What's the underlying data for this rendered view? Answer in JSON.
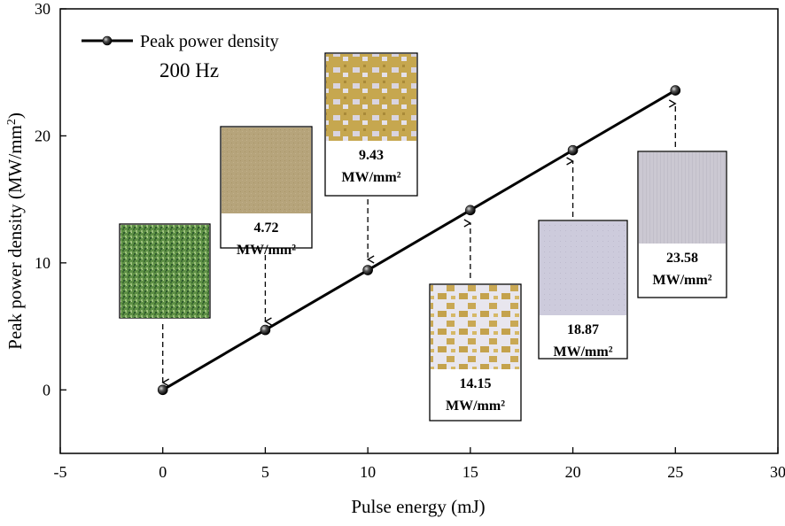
{
  "chart_data": {
    "type": "line",
    "xlabel": "Pulse energy (mJ)",
    "ylabel_main": "Peak power density (MW/mm",
    "ylabel_sup": "2",
    "ylabel_close": ")",
    "xlim": [
      -5,
      30
    ],
    "ylim": [
      -5,
      30
    ],
    "xticks": [
      -5,
      0,
      5,
      10,
      15,
      20,
      25,
      30
    ],
    "yticks": [
      0,
      10,
      20,
      30
    ],
    "xtick_labels": [
      "-5",
      "0",
      "5",
      "10",
      "15",
      "20",
      "25",
      "30"
    ],
    "ytick_labels": [
      "0",
      "10",
      "20",
      "30"
    ],
    "series": [
      {
        "name": "Peak power density",
        "x": [
          0,
          5,
          10,
          15,
          20,
          25
        ],
        "y": [
          0,
          4.72,
          9.43,
          14.15,
          18.87,
          23.58
        ]
      }
    ],
    "legend": {
      "label": "Peak power density",
      "position": "top-left"
    },
    "annotation": "200 Hz",
    "insets": [
      {
        "point_index": 0,
        "value": "",
        "unit": "",
        "texture": "green"
      },
      {
        "point_index": 1,
        "value": "4.72",
        "unit": "MW/mm²",
        "texture": "tan"
      },
      {
        "point_index": 2,
        "value": "9.43",
        "unit": "MW/mm²",
        "texture": "gold-patchy"
      },
      {
        "point_index": 3,
        "value": "14.15",
        "unit": "MW/mm²",
        "texture": "patchy-white"
      },
      {
        "point_index": 4,
        "value": "18.87",
        "unit": "MW/mm²",
        "texture": "lavender"
      },
      {
        "point_index": 5,
        "value": "23.58",
        "unit": "MW/mm²",
        "texture": "gray"
      }
    ],
    "colors": {
      "line": "#000000",
      "green": "#5f9146",
      "tan": "#b6a47b",
      "gold": "#c6a74f",
      "lavender": "#cdcbdc",
      "gray": "#cbc8d2"
    }
  }
}
